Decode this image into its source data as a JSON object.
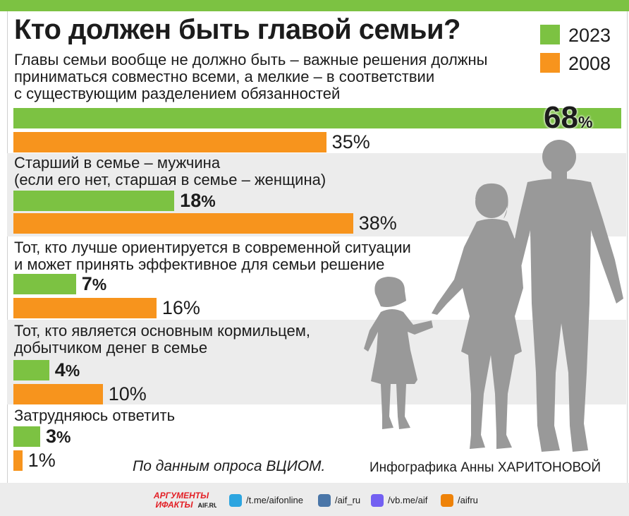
{
  "title": "Кто должен быть главой семьи?",
  "legend": [
    {
      "label": "2023",
      "color": "#7cc242"
    },
    {
      "label": "2008",
      "color": "#f7941d"
    }
  ],
  "chart_data": {
    "type": "bar",
    "orientation": "horizontal",
    "title": "Кто должен быть главой семьи?",
    "unit": "%",
    "xlim": [
      0,
      68
    ],
    "grid": false,
    "legend_position": "top-right",
    "categories": [
      [
        "Главы семьи вообще не должно быть – важные решения должны",
        "приниматься совместно всеми, а мелкие – в соответствии",
        "с существующим разделением обязанностей"
      ],
      [
        "Старший в семье – мужчина",
        "(если его нет, старшая в семье – женщина)"
      ],
      [
        "Тот, кто лучше ориентируется в современной ситуации",
        "и может принять эффективное для семьи решение"
      ],
      [
        "Тот, кто является основным кормильцем,",
        "добытчиком денег в семье"
      ],
      [
        "Затрудняюсь ответить"
      ]
    ],
    "series": [
      {
        "name": "2023",
        "color": "#7cc242",
        "values": [
          68,
          18,
          7,
          4,
          3
        ]
      },
      {
        "name": "2008",
        "color": "#f7941d",
        "values": [
          35,
          38,
          16,
          10,
          1
        ]
      }
    ]
  },
  "source": "По данным опроса ВЦИОМ.",
  "credit": "Инфографика Анны ХАРИТОНОВОЙ",
  "footer": {
    "logo_line1": "АРГУМЕНТЫ",
    "logo_line2": "ИФАКТЫ",
    "logo_domain": "AIF.RU",
    "links": [
      {
        "icon": "telegram-icon",
        "label": "/t.me/aifonline",
        "color": "#2ca5e0"
      },
      {
        "icon": "vk-icon",
        "label": "/aif_ru",
        "color": "#4a76a8"
      },
      {
        "icon": "viber-icon",
        "label": "/vb.me/aif",
        "color": "#7360f2"
      },
      {
        "icon": "odnoklassniki-icon",
        "label": "/aifru",
        "color": "#ee8208"
      }
    ]
  }
}
